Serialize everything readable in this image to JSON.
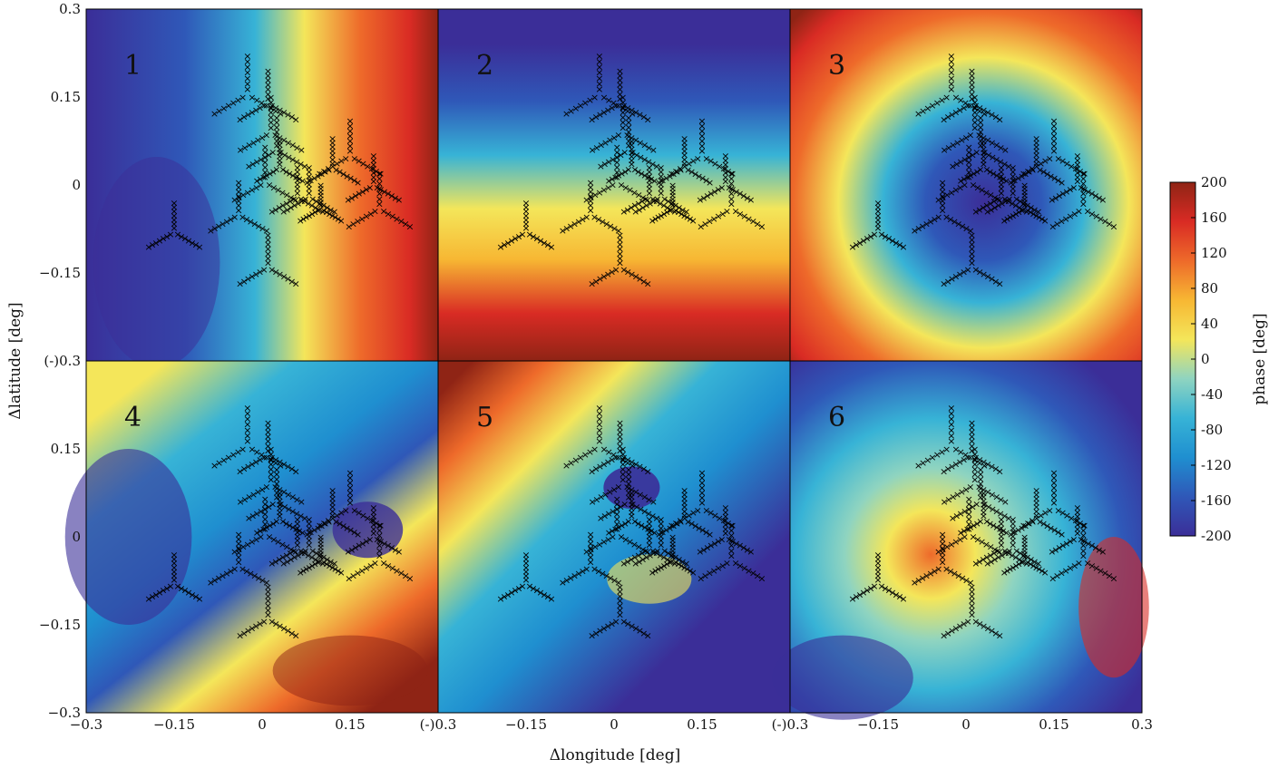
{
  "figure": {
    "xlabel": "Δlongitude [deg]",
    "ylabel": "Δlatitude [deg]",
    "colorbar_label": "phase [deg]"
  },
  "chart_data": {
    "type": "heatmap",
    "xlabel": "Δlongitude [deg]",
    "ylabel": "Δlatitude [deg]",
    "xlim": [
      -0.3,
      0.3
    ],
    "ylim": [
      -0.3,
      0.3
    ],
    "x_tick_labels": [
      "−0.3",
      "−0.15",
      "0",
      "0.15",
      "(-)0.3",
      "−0.15",
      "0",
      "0.15",
      "(-)0.3",
      "−0.15",
      "0",
      "0.15",
      "0.3"
    ],
    "y_tick_labels": [
      "0.3",
      "0.15",
      "0",
      "−0.15",
      "(-)0.3",
      "0.15",
      "0",
      "−0.15",
      "−0.3"
    ],
    "colorbar": {
      "label": "phase [deg]",
      "range": [
        -200,
        200
      ],
      "ticks": [
        200,
        160,
        120,
        80,
        40,
        0,
        -40,
        -80,
        -120,
        -160,
        -200
      ],
      "colors": [
        "#3b2e98",
        "#2f58b8",
        "#1f8fd0",
        "#37b3d6",
        "#8fd4c0",
        "#f4e65a",
        "#f7b733",
        "#ee6a2a",
        "#d92b24",
        "#8f2415"
      ]
    },
    "panels": [
      {
        "label": "1",
        "pattern": "eastward gradient"
      },
      {
        "label": "2",
        "pattern": "southward gradient"
      },
      {
        "label": "3",
        "pattern": "central minimum"
      },
      {
        "label": "4",
        "pattern": "saddle"
      },
      {
        "label": "5",
        "pattern": "diagonal gradient"
      },
      {
        "label": "6",
        "pattern": "dipole"
      }
    ],
    "station_marker": "×",
    "array_layout": {
      "type": "scatter",
      "stations": [
        {
          "x": -0.025,
          "y": 0.155,
          "arm_length": 0.065
        },
        {
          "x": 0.01,
          "y": 0.14,
          "arm_length": 0.055
        },
        {
          "x": 0.015,
          "y": 0.09,
          "arm_length": 0.06
        },
        {
          "x": 0.025,
          "y": 0.06,
          "arm_length": 0.055
        },
        {
          "x": 0.03,
          "y": 0.03,
          "arm_length": 0.045
        },
        {
          "x": 0.005,
          "y": 0.005,
          "arm_length": 0.06
        },
        {
          "x": 0.12,
          "y": 0.03,
          "arm_length": 0.05
        },
        {
          "x": 0.15,
          "y": 0.05,
          "arm_length": 0.06
        },
        {
          "x": 0.19,
          "y": 0.0,
          "arm_length": 0.05
        },
        {
          "x": 0.2,
          "y": -0.04,
          "arm_length": 0.06
        },
        {
          "x": 0.06,
          "y": -0.02,
          "arm_length": 0.05
        },
        {
          "x": 0.08,
          "y": -0.02,
          "arm_length": 0.05
        },
        {
          "x": 0.1,
          "y": -0.04,
          "arm_length": 0.04
        },
        {
          "x": -0.04,
          "y": -0.05,
          "arm_length": 0.055
        },
        {
          "x": -0.15,
          "y": -0.08,
          "arm_length": 0.05
        },
        {
          "x": 0.01,
          "y": -0.14,
          "arm_length": 0.055
        }
      ]
    }
  }
}
